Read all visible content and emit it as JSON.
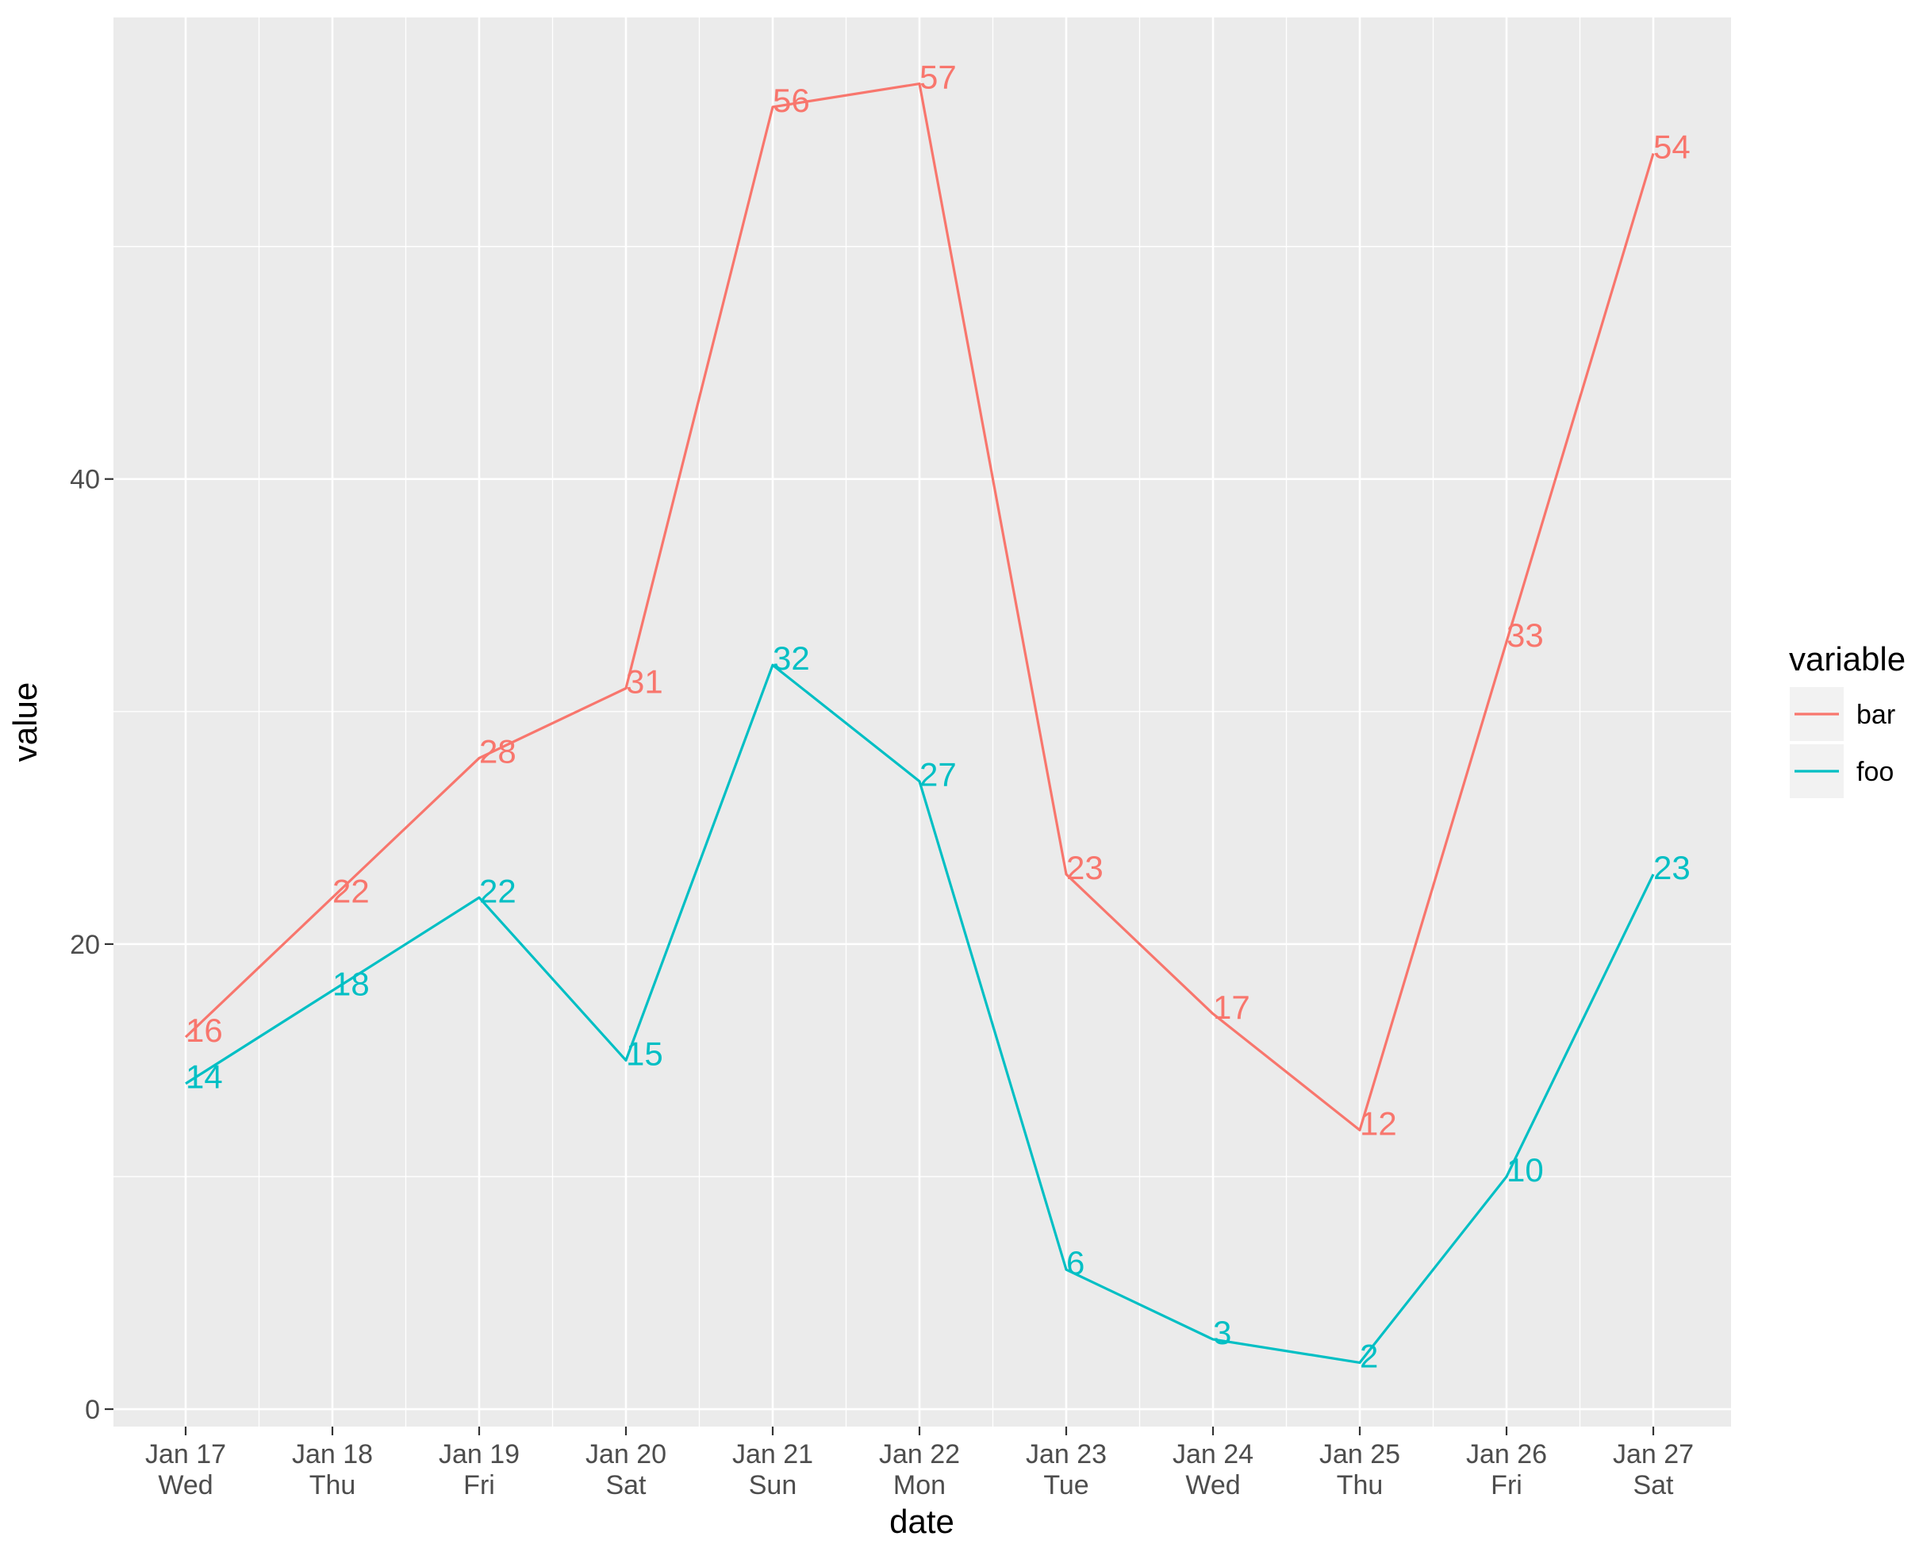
{
  "chart_data": {
    "type": "line",
    "title": "",
    "xlabel": "date",
    "ylabel": "value",
    "x": [
      "2018-01-17",
      "2018-01-18",
      "2018-01-19",
      "2018-01-20",
      "2018-01-21",
      "2018-01-22",
      "2018-01-23",
      "2018-01-24",
      "2018-01-25",
      "2018-01-26",
      "2018-01-27"
    ],
    "x_tick_labels": [
      [
        "Jan 17",
        "Wed"
      ],
      [
        "Jan 18",
        "Thu"
      ],
      [
        "Jan 19",
        "Fri"
      ],
      [
        "Jan 20",
        "Sat"
      ],
      [
        "Jan 21",
        "Sun"
      ],
      [
        "Jan 22",
        "Mon"
      ],
      [
        "Jan 23",
        "Tue"
      ],
      [
        "Jan 24",
        "Wed"
      ],
      [
        "Jan 25",
        "Thu"
      ],
      [
        "Jan 26",
        "Fri"
      ],
      [
        "Jan 27",
        "Sat"
      ]
    ],
    "y_ticks": [
      0,
      20,
      40
    ],
    "y_tick_labels": [
      "0",
      "20",
      "40"
    ],
    "ylim": [
      -0.75,
      59.85
    ],
    "grid": true,
    "legend": {
      "title": "variable",
      "position": "right"
    },
    "series": [
      {
        "name": "bar",
        "color": "#F8766D",
        "values": [
          16,
          22,
          28,
          31,
          56,
          57,
          23,
          17,
          12,
          33,
          54
        ]
      },
      {
        "name": "foo",
        "color": "#00BFC4",
        "values": [
          14,
          18,
          22,
          15,
          32,
          27,
          6,
          3,
          2,
          10,
          23
        ]
      }
    ],
    "data_labels": true
  }
}
